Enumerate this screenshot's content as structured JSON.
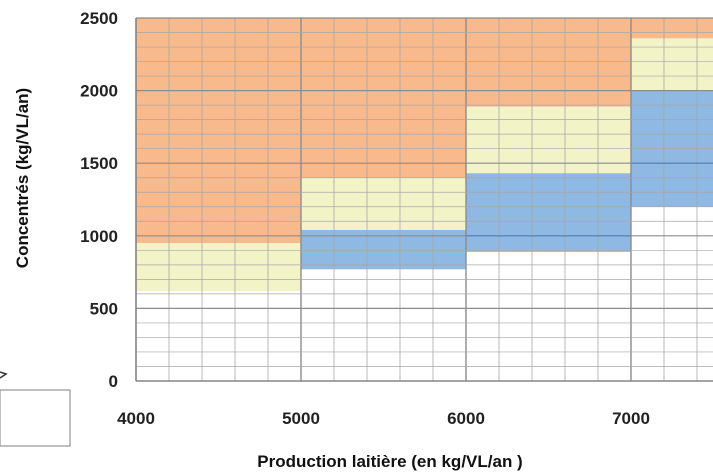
{
  "chart_data": {
    "type": "area",
    "title": "",
    "xlabel": "Production laitière (en kg/VL/an )",
    "ylabel": "Concentrés (kg/VL/an)",
    "xlim": [
      4000,
      7500
    ],
    "ylim": [
      0,
      2500
    ],
    "x_ticks": [
      4000,
      5000,
      6000,
      7000
    ],
    "y_ticks": [
      0,
      500,
      1000,
      1500,
      2000,
      2500
    ],
    "grid": true,
    "colors": {
      "orange": "#f8b98d",
      "yellow": "#f3f3c8",
      "blue": "#8fb8e2",
      "grid": "#a7a7a7",
      "major_grid": "#8c8c8c"
    },
    "bands": [
      {
        "x0": 4000,
        "x1": 5000,
        "blue_low": 950,
        "blue_high": 950,
        "yellow_low": 620,
        "yellow_high": 950
      },
      {
        "x0": 5000,
        "x1": 6000,
        "blue_low": 770,
        "blue_high": 1040,
        "yellow_low": 1040,
        "yellow_high": 1400
      },
      {
        "x0": 6000,
        "x1": 7000,
        "blue_low": 890,
        "blue_high": 1430,
        "yellow_low": 1430,
        "yellow_high": 1890
      },
      {
        "x0": 7000,
        "x1": 7500,
        "blue_low": 1200,
        "blue_high": 2000,
        "yellow_low": 2000,
        "yellow_high": 2360
      }
    ],
    "lines": [
      {
        "x0": 6000,
        "x1": 7000,
        "y": 1000
      },
      {
        "x0": 7000,
        "x1": 7500,
        "y": 1500
      }
    ],
    "legend_box_visible": true
  }
}
